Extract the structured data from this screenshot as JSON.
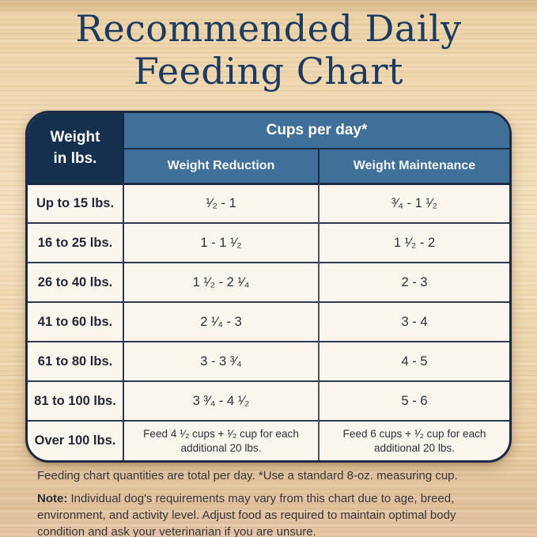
{
  "title": {
    "line1": "Recommended Daily",
    "line2": "Feeding Chart"
  },
  "colors": {
    "title_navy": "#1d3b61",
    "header_dark_navy": "#15304e",
    "header_blue": "#406f99",
    "table_cream": "#faf6ed",
    "border_navy": "#1b2a42",
    "wood_background": "#f0d9b2"
  },
  "table": {
    "weight_header": "Weight\nin lbs.",
    "cups_header": "Cups per day*",
    "col_reduction": "Weight Reduction",
    "col_maintenance": "Weight Maintenance",
    "rows": [
      {
        "weight": "Up to 15 lbs.",
        "reduction": "¹⁄₂ - 1",
        "maintenance": "³⁄₄ - 1 ¹⁄₂"
      },
      {
        "weight": "16 to 25 lbs.",
        "reduction": "1 - 1 ¹⁄₂",
        "maintenance": "1 ¹⁄₂ - 2"
      },
      {
        "weight": "26 to 40 lbs.",
        "reduction": "1 ¹⁄₂ - 2 ¹⁄₄",
        "maintenance": "2 - 3"
      },
      {
        "weight": "41 to 60 lbs.",
        "reduction": "2 ¹⁄₄ - 3",
        "maintenance": "3 - 4"
      },
      {
        "weight": "61 to 80 lbs.",
        "reduction": "3 - 3 ³⁄₄",
        "maintenance": "4 - 5"
      },
      {
        "weight": "81 to 100 lbs.",
        "reduction": "3 ³⁄₄ - 4 ¹⁄₂",
        "maintenance": "5 - 6"
      },
      {
        "weight": "Over 100 lbs.",
        "reduction": "Feed 4 ¹⁄₂ cups + ¹⁄₂ cup for each additional 20 lbs.",
        "maintenance": "Feed 6 cups + ¹⁄₂ cup for each additional 20 lbs."
      }
    ]
  },
  "footer": {
    "line1": "Feeding chart quantities are total per day. *Use a standard 8-oz. measuring cup.",
    "note_label": "Note:",
    "note_text": "Individual dog's requirements may vary from this chart due to age, breed, environment, and activity level. Adjust food as required to maintain optimal body condition and ask your veterinarian if you are unsure."
  }
}
